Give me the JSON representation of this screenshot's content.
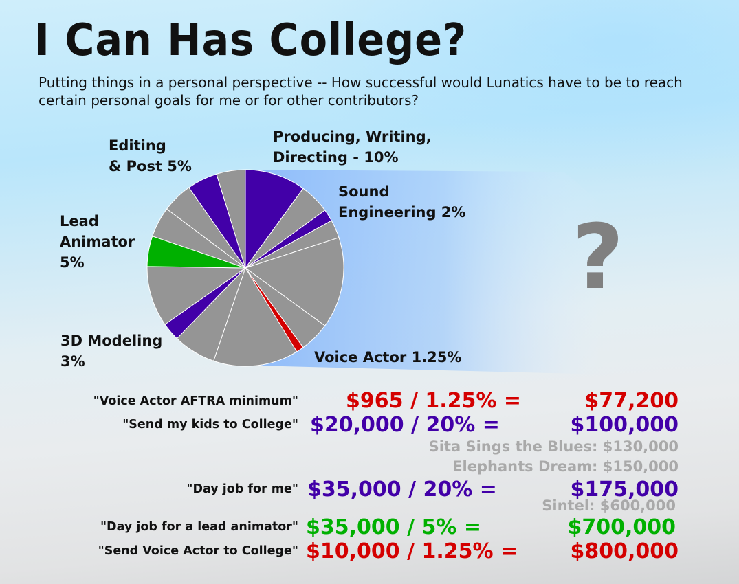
{
  "title": "I Can Has College?",
  "subtitle": "Putting things in a personal perspective -- How successful would Lunatics have to be to reach certain personal goals for me or for other contributors?",
  "question_mark": "?",
  "colors": {
    "purple": "#4200a8",
    "grey": "#959595",
    "green": "#00b000",
    "red": "#d40000",
    "ref_grey": "#a9a9a9"
  },
  "chart_data": {
    "type": "pie",
    "slices": [
      {
        "label": "Producing, Writing,\nDirecting  - 10%",
        "value": 10,
        "color": "#4200a8"
      },
      {
        "label": "",
        "value": 5,
        "color": "#959595"
      },
      {
        "label": "Sound\nEngineering 2%",
        "value": 2,
        "color": "#4200a8"
      },
      {
        "label": "",
        "value": 3,
        "color": "#959595"
      },
      {
        "label": "",
        "value": 15,
        "color": "#959595"
      },
      {
        "label": "",
        "value": 5,
        "color": "#959595"
      },
      {
        "label": "Voice Actor 1.25%",
        "value": 1.25,
        "color": "#d40000"
      },
      {
        "label": "",
        "value": 14,
        "color": "#959595"
      },
      {
        "label": "",
        "value": 7,
        "color": "#959595"
      },
      {
        "label": "3D Modeling\n3%",
        "value": 3,
        "color": "#4200a8"
      },
      {
        "label": "",
        "value": 10,
        "color": "#959595"
      },
      {
        "label": "Lead\nAnimator\n5%",
        "value": 5,
        "color": "#00b000"
      },
      {
        "label": "",
        "value": 5,
        "color": "#959595"
      },
      {
        "label": "",
        "value": 5,
        "color": "#959595"
      },
      {
        "label": "Editing\n& Post 5%",
        "value": 5,
        "color": "#4200a8"
      },
      {
        "label": "",
        "value": 4.75,
        "color": "#959595"
      }
    ]
  },
  "rows": [
    {
      "label": "\"Voice Actor AFTRA minimum\"",
      "lhs": "$965 / 1.25% =",
      "rhs": "$77,200",
      "color": "#d40000"
    },
    {
      "label": "\"Send my kids to College\"",
      "lhs": "$20,000  /   20% =",
      "rhs": "$100,000",
      "color": "#4200a8"
    },
    {
      "label": "\"Day job for me\"",
      "lhs": "$35,000  /   20% =",
      "rhs": "$175,000",
      "color": "#4200a8"
    },
    {
      "label": "\"Day job for a lead animator\"",
      "lhs": "$35,000 /      5% =",
      "rhs": "$700,000",
      "color": "#00b000"
    },
    {
      "label": "\"Send Voice Actor to College\"",
      "lhs": "$10,000 / 1.25% =",
      "rhs": "$800,000",
      "color": "#d40000"
    }
  ],
  "references": [
    {
      "text": "Sita Sings the Blues:  $130,000"
    },
    {
      "text": "Elephants Dream:  $150,000"
    },
    {
      "text": "Sintel:   $600,000"
    }
  ]
}
